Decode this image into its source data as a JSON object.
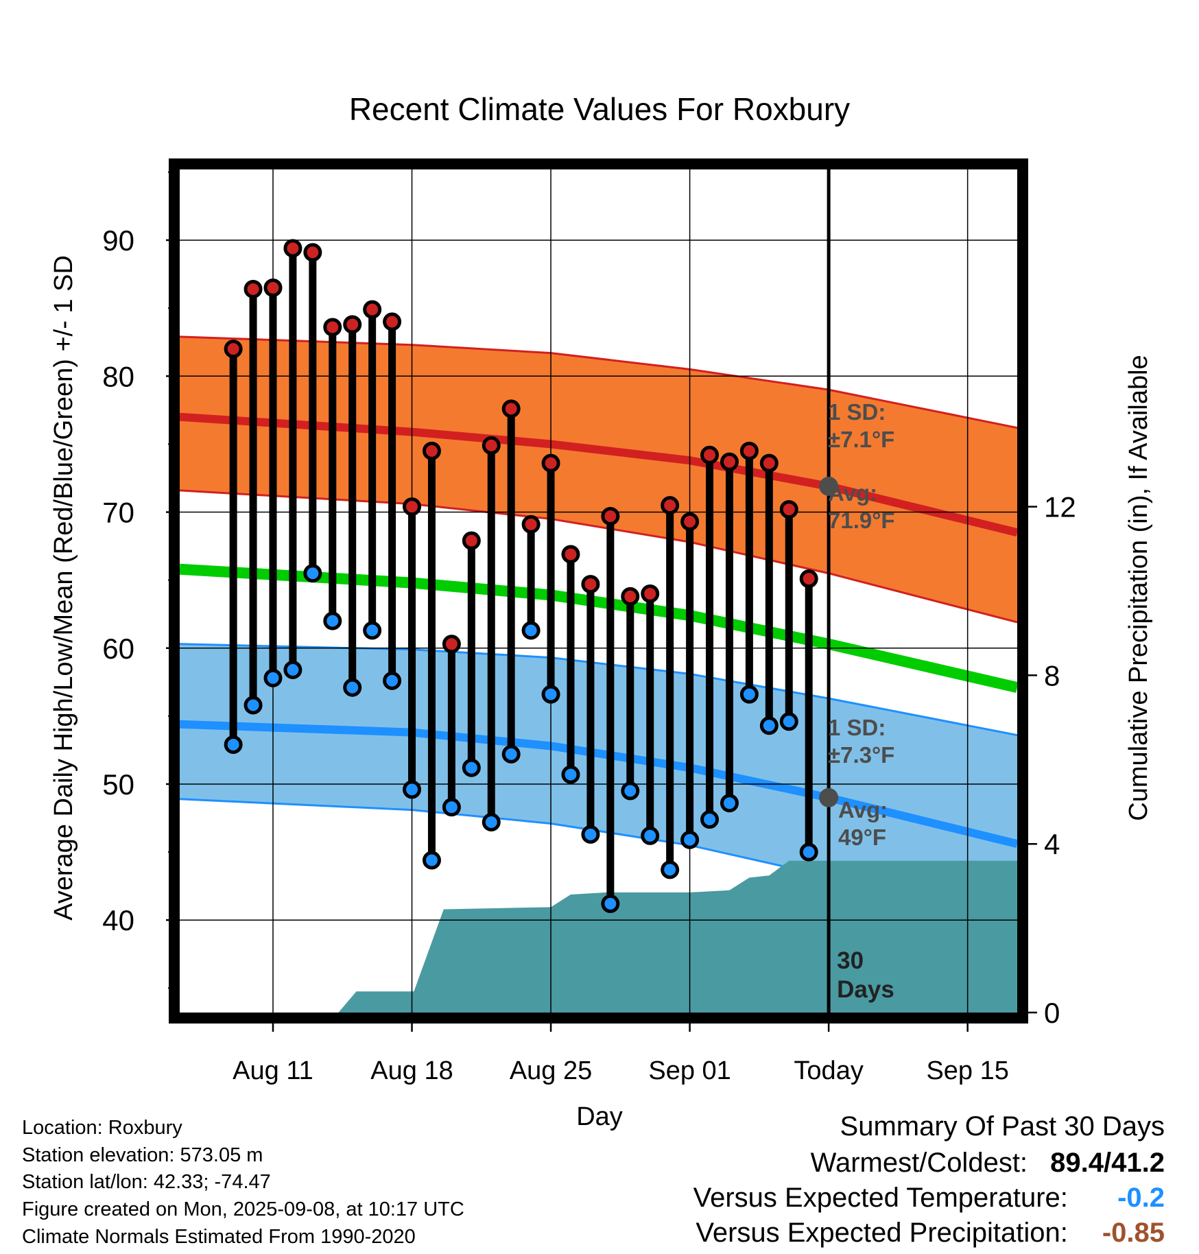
{
  "chart_data": {
    "type": "line",
    "title": "Recent Climate Values For Roxbury",
    "xlabel": "Day",
    "ylabel": "Average Daily High/Low/Mean (Red/Blue/Green) +/- 1 SD",
    "y2label": "Cumulative Precipitation (in), If Available",
    "x_range_days": [
      -32.7,
      9.5
    ],
    "ylim": [
      33.2,
      95.2
    ],
    "y2lim": [
      0,
      20
    ],
    "x_ticks": [
      {
        "day": -28,
        "label": "Aug 11"
      },
      {
        "day": -21,
        "label": "Aug 18"
      },
      {
        "day": -14,
        "label": "Aug 25"
      },
      {
        "day": -7,
        "label": "Sep 01"
      },
      {
        "day": 0,
        "label": "Today"
      },
      {
        "day": 7,
        "label": "Sep 15"
      }
    ],
    "y_ticks": [
      40,
      50,
      60,
      70,
      80,
      90
    ],
    "y_minor_ticks": [
      35,
      45,
      55,
      65,
      75,
      85,
      95
    ],
    "y2_ticks": [
      0,
      4,
      8,
      12
    ],
    "today_label": [
      "30",
      "Days"
    ],
    "grid": true,
    "high_band": {
      "label": [
        "1 SD:",
        "±7.1°F"
      ],
      "avg_label": [
        "Avg:",
        "71.9°F"
      ],
      "x": [
        -32.7,
        -21,
        -14,
        -7,
        0,
        9.5
      ],
      "mean": [
        77.0,
        75.9,
        75.0,
        73.8,
        71.9,
        68.5
      ],
      "upper": [
        82.9,
        82.3,
        81.7,
        80.5,
        79.0,
        76.2
      ],
      "lower": [
        71.6,
        70.6,
        69.5,
        67.8,
        65.5,
        61.9
      ],
      "today_mean": 71.9
    },
    "low_band": {
      "label": [
        "1 SD:",
        "±7.3°F"
      ],
      "avg_label": [
        "Avg:",
        "49°F"
      ],
      "x": [
        -32.7,
        -21,
        -14,
        -7,
        0,
        9.5
      ],
      "mean": [
        54.4,
        53.8,
        52.8,
        51.2,
        49.0,
        45.6
      ],
      "upper": [
        60.3,
        59.9,
        59.3,
        58.1,
        56.3,
        53.6
      ],
      "lower": [
        48.9,
        48.1,
        47.1,
        45.5,
        43.2,
        39.8
      ],
      "today_mean": 49.0
    },
    "mean_line": {
      "x": [
        -32.7,
        -21,
        -14,
        -7,
        0,
        9.5
      ],
      "values": [
        65.8,
        64.8,
        63.9,
        62.4,
        60.3,
        57.1
      ]
    },
    "series": [
      {
        "name": "High",
        "x": [
          -30,
          -29,
          -28,
          -27,
          -26,
          -25,
          -24,
          -23,
          -22,
          -21,
          -20,
          -19,
          -18,
          -17,
          -16,
          -15,
          -14,
          -13,
          -12,
          -11,
          -10,
          -9,
          -8,
          -7,
          -6,
          -5,
          -4,
          -3,
          -2,
          -1
        ],
        "values": [
          82.0,
          86.4,
          86.5,
          89.4,
          89.1,
          83.6,
          83.8,
          84.9,
          84.0,
          70.4,
          74.5,
          60.3,
          67.9,
          74.9,
          77.6,
          69.1,
          73.6,
          66.9,
          64.7,
          69.7,
          63.8,
          64.0,
          70.5,
          69.3,
          74.2,
          73.7,
          74.5,
          73.6,
          70.2,
          65.1
        ]
      },
      {
        "name": "Low",
        "x": [
          -30,
          -29,
          -28,
          -27,
          -26,
          -25,
          -24,
          -23,
          -22,
          -21,
          -20,
          -19,
          -18,
          -17,
          -16,
          -15,
          -14,
          -13,
          -12,
          -11,
          -10,
          -9,
          -8,
          -7,
          -6,
          -5,
          -4,
          -3,
          -2,
          -1
        ],
        "values": [
          52.9,
          55.8,
          57.8,
          58.4,
          65.5,
          62.0,
          57.1,
          61.3,
          57.6,
          49.6,
          44.4,
          48.3,
          51.2,
          47.2,
          52.2,
          61.3,
          56.6,
          50.7,
          46.3,
          41.2,
          49.5,
          46.2,
          43.7,
          45.9,
          47.4,
          48.6,
          56.6,
          54.3,
          54.6,
          45.0
        ]
      }
    ],
    "precip": {
      "x": [
        -32.7,
        -24.7,
        -23.8,
        -20.9,
        -19.4,
        -14.0,
        -13.0,
        -11.2,
        -7.0,
        -5.0,
        -4.0,
        -3.0,
        -2.0,
        9.5
      ],
      "values": [
        0,
        0,
        0.5,
        0.5,
        2.45,
        2.5,
        2.8,
        2.85,
        2.85,
        2.9,
        3.2,
        3.25,
        3.6,
        3.6
      ]
    }
  },
  "footer": {
    "location": "Location: Roxbury",
    "elevation": "Station elevation: 573.05 m",
    "latlon": "Station lat/lon: 42.33; -74.47",
    "created": "Figure created on Mon, 2025-09-08, at 10:17 UTC",
    "normals": "Climate Normals Estimated From 1990-2020"
  },
  "summary": {
    "title": "Summary Of Past 30 Days",
    "warm_cold_label": "Warmest/Coldest:",
    "warm_cold_value": "89.4/41.2",
    "temp_label": "Versus Expected Temperature:",
    "temp_value": "-0.2",
    "precip_label": "Versus Expected Precipitation:",
    "precip_value": "-0.85",
    "temp_color": "#1e90ff",
    "precip_color": "#a0522d"
  },
  "colors": {
    "high_band": "#f47a30",
    "high_edge": "#d22020",
    "low_band": "#80c0e8",
    "low_edge": "#1e90ff",
    "mean_line": "#00cc00",
    "precip": "#4a9aa2",
    "high_point": "#cc2222",
    "low_point": "#1e90ff",
    "label_gray": "#4d4d4d"
  }
}
